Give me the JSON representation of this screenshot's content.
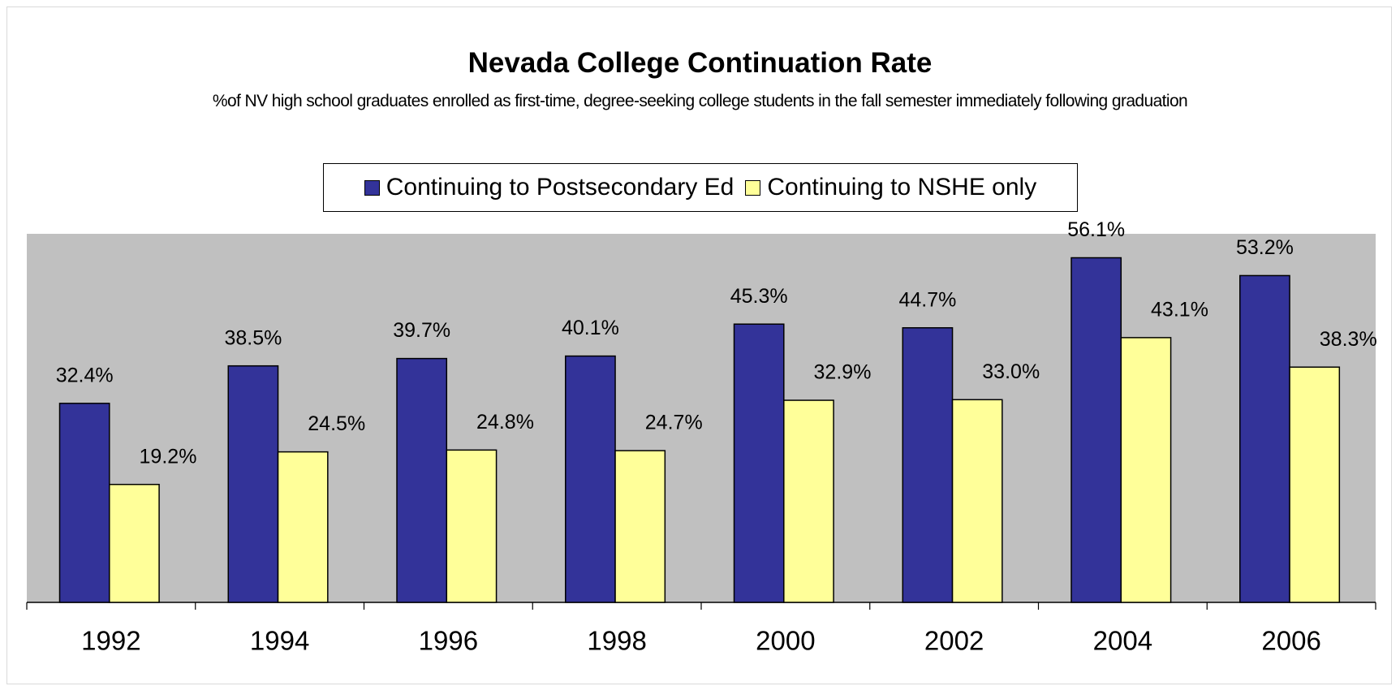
{
  "chart_data": {
    "type": "bar",
    "title": "Nevada College Continuation Rate",
    "subtitle": "%of NV high school graduates enrolled as first-time, degree-seeking college students in the fall semester immediately following graduation",
    "categories": [
      "1992",
      "1994",
      "1996",
      "1998",
      "2000",
      "2002",
      "2004",
      "2006"
    ],
    "series": [
      {
        "name": "Continuing to Postsecondary Ed",
        "color": "#333399",
        "values": [
          32.4,
          38.5,
          39.7,
          40.1,
          45.3,
          44.7,
          56.1,
          53.2
        ],
        "value_labels": [
          "32.4%",
          "38.5%",
          "39.7%",
          "40.1%",
          "45.3%",
          "44.7%",
          "56.1%",
          "53.2%"
        ]
      },
      {
        "name": "Continuing to NSHE only",
        "color": "#ffff99",
        "values": [
          19.2,
          24.5,
          24.8,
          24.7,
          32.9,
          33.0,
          43.1,
          38.3
        ],
        "value_labels": [
          "19.2%",
          "24.5%",
          "24.8%",
          "24.7%",
          "32.9%",
          "33.0%",
          "43.1%",
          "38.3%"
        ]
      }
    ],
    "ylim": [
      0,
      60
    ],
    "plot_background": "#c0c0c0",
    "legend": "top"
  }
}
